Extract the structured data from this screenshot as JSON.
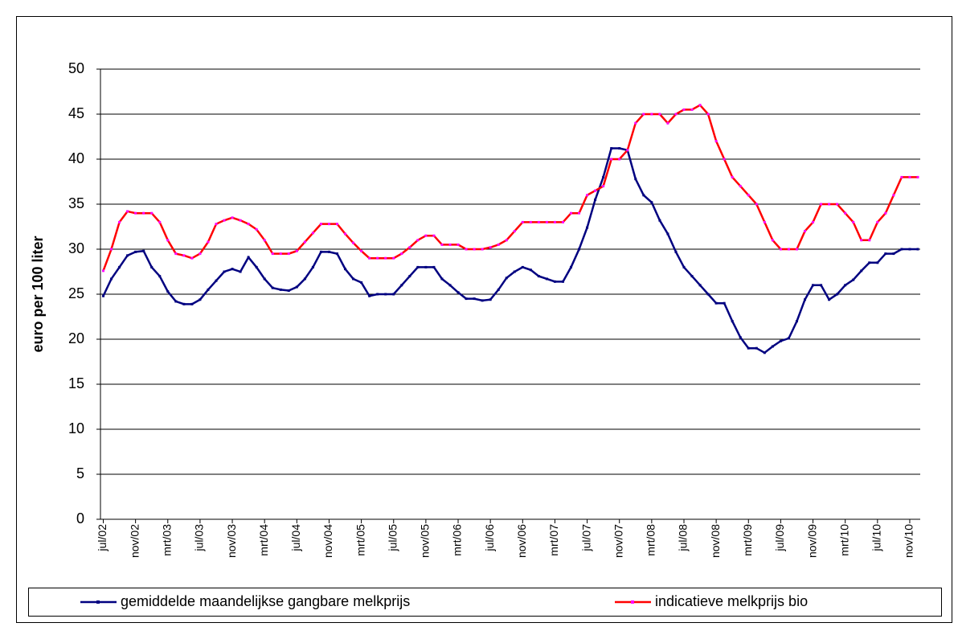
{
  "chart_data": {
    "type": "line",
    "ylabel": "euro per 100 liter",
    "categories": [
      "jul/02",
      null,
      null,
      null,
      "nov/02",
      null,
      null,
      null,
      "mrt/03",
      null,
      null,
      null,
      "jul/03",
      null,
      null,
      null,
      "nov/03",
      null,
      null,
      null,
      "mrt/04",
      null,
      null,
      null,
      "jul/04",
      null,
      null,
      null,
      "nov/04",
      null,
      null,
      null,
      "mrt/05",
      null,
      null,
      null,
      "jul/05",
      null,
      null,
      null,
      "nov/05",
      null,
      null,
      null,
      "mrt/06",
      null,
      null,
      null,
      "jul/06",
      null,
      null,
      null,
      "nov/06",
      null,
      null,
      null,
      "mrt/07",
      null,
      null,
      null,
      "jul/07",
      null,
      null,
      null,
      "nov/07",
      null,
      null,
      null,
      "mrt/08",
      null,
      null,
      null,
      "jul/08",
      null,
      null,
      null,
      "nov/08",
      null,
      null,
      null,
      "mrt/09",
      null,
      null,
      null,
      "jul/09",
      null,
      null,
      null,
      "nov/09",
      null,
      null,
      null,
      "mrt/10",
      null,
      null,
      null,
      "jul/10",
      null,
      null,
      null,
      "nov/10",
      null
    ],
    "series": [
      {
        "name": "gemiddelde maandelijkse gangbare melkprijs",
        "color": "#000080",
        "marker_color": "#000080",
        "values": [
          24.8,
          26.7,
          28,
          29.3,
          29.7,
          29.8,
          28,
          27,
          25.3,
          24.2,
          23.9,
          23.9,
          24.4,
          25.5,
          26.5,
          27.5,
          27.8,
          27.5,
          29.1,
          28,
          26.7,
          25.7,
          25.5,
          25.4,
          25.8,
          26.7,
          28,
          29.7,
          29.7,
          29.5,
          27.8,
          26.7,
          26.3,
          24.8,
          25,
          25,
          25,
          26,
          27,
          28,
          28,
          28,
          26.7,
          26,
          25.2,
          24.5,
          24.5,
          24.3,
          24.4,
          25.5,
          26.8,
          27.5,
          28,
          27.7,
          27,
          26.7,
          26.4,
          26.4,
          28,
          30,
          32.4,
          35.5,
          38,
          41.2,
          41.2,
          41,
          37.8,
          36,
          35.2,
          33.2,
          31.7,
          29.7,
          28,
          27,
          26,
          25,
          24,
          24,
          22,
          20.2,
          19,
          19,
          18.5,
          19.2,
          19.8,
          20.1,
          22,
          24.4,
          26,
          26,
          24.4,
          25,
          26,
          26.6,
          27.6,
          28.5,
          28.5,
          29.5,
          29.5,
          30,
          30,
          30
        ]
      },
      {
        "name": "indicatieve melkprijs bio",
        "color": "#ff0000",
        "marker_color": "#ff00ff",
        "values": [
          27.6,
          30,
          33,
          34.2,
          34,
          34,
          34,
          33,
          31,
          29.5,
          29.3,
          29,
          29.5,
          30.8,
          32.8,
          33.2,
          33.5,
          33.2,
          32.8,
          32.2,
          31,
          29.5,
          29.5,
          29.5,
          29.8,
          30.8,
          31.8,
          32.8,
          32.8,
          32.8,
          31.7,
          30.7,
          29.8,
          29,
          29,
          29,
          29,
          29.5,
          30.2,
          31,
          31.5,
          31.5,
          30.5,
          30.5,
          30.5,
          30,
          30,
          30,
          30.2,
          30.5,
          31,
          32,
          33,
          33,
          33,
          33,
          33,
          33,
          34,
          34,
          36,
          36.5,
          37,
          40,
          40,
          41,
          44,
          45,
          45,
          45,
          44,
          45,
          45.5,
          45.5,
          46,
          45,
          42,
          40,
          38,
          37,
          36,
          35,
          33,
          31,
          30,
          30,
          30,
          32,
          33,
          35,
          35,
          35,
          34,
          33,
          31,
          31,
          33,
          34,
          36,
          38,
          38,
          38
        ]
      }
    ],
    "ylim": [
      0,
      50
    ],
    "yticks": [
      0,
      5,
      10,
      15,
      20,
      25,
      30,
      35,
      40,
      45,
      50
    ],
    "grid": true,
    "legend": "bottom"
  }
}
